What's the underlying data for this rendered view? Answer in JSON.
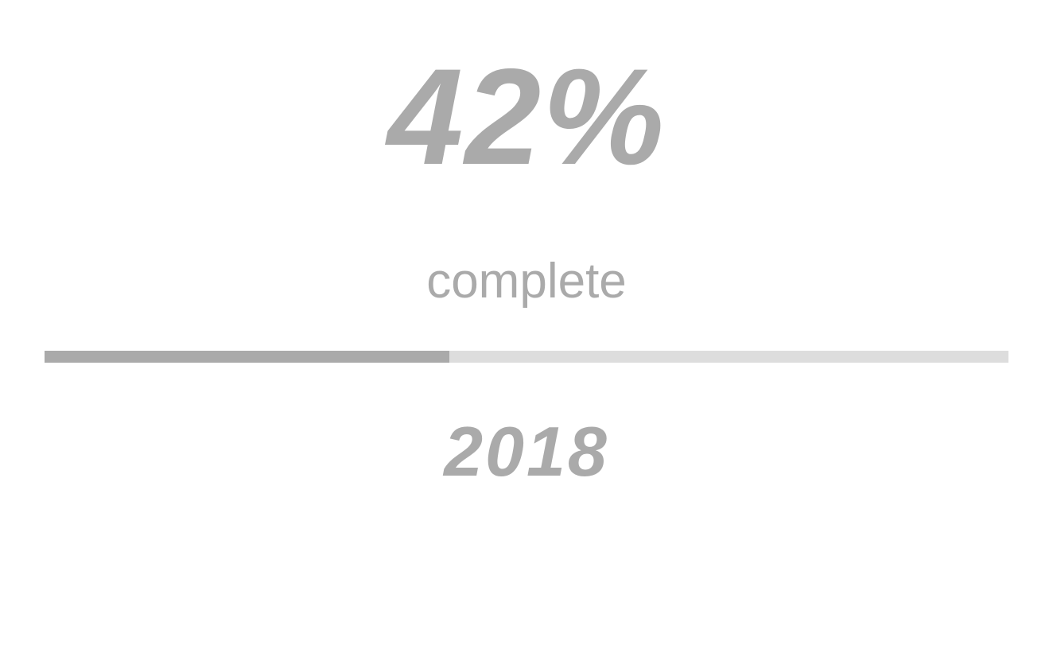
{
  "progress": {
    "percent_label": "42%",
    "percent_value": 0.42,
    "caption": "complete",
    "year": "2018"
  },
  "colors": {
    "text": "#aaaaaa",
    "bar_fill": "#aaaaaa",
    "bar_track": "#dddddd",
    "background": "#ffffff"
  }
}
